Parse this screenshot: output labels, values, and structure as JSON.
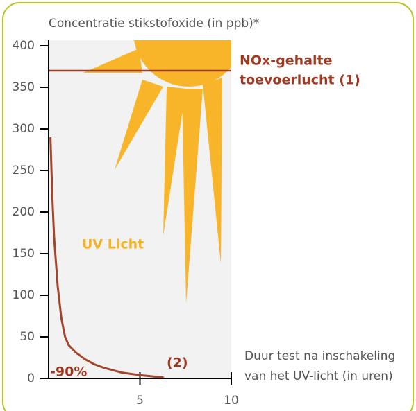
{
  "chart_data": {
    "type": "line",
    "ylabel": "Concentratie stikstofoxide (in ppb)*",
    "xlabel": [
      "Duur test na inschakeling",
      "van het UV-licht (in uren)"
    ],
    "x": [
      0.1,
      0.2,
      0.3,
      0.5,
      0.7,
      0.9,
      1.1,
      1.5,
      2,
      2.5,
      3,
      4,
      5,
      6.3
    ],
    "series": [
      {
        "color": "#a3452b",
        "values": [
          290,
          220,
          170,
          110,
          72,
          50,
          40,
          31,
          23,
          17,
          13,
          7,
          4,
          1
        ]
      }
    ],
    "xlim": [
      0,
      10
    ],
    "xticks": [
      5,
      10
    ],
    "ylim": [
      0,
      400
    ],
    "yticks": [
      0,
      50,
      100,
      150,
      200,
      250,
      300,
      350,
      400
    ],
    "reference_line": {
      "value": 370,
      "color": "#9e3a22",
      "label": [
        "NOx-gehalte",
        "toevoerlucht (1)"
      ]
    },
    "annotations": [
      {
        "text": "UV Licht",
        "color": "#f5b324"
      },
      {
        "text": "-90%",
        "color": "#9e3a22"
      },
      {
        "text": "(2)",
        "color": "#9e3a22"
      }
    ]
  }
}
